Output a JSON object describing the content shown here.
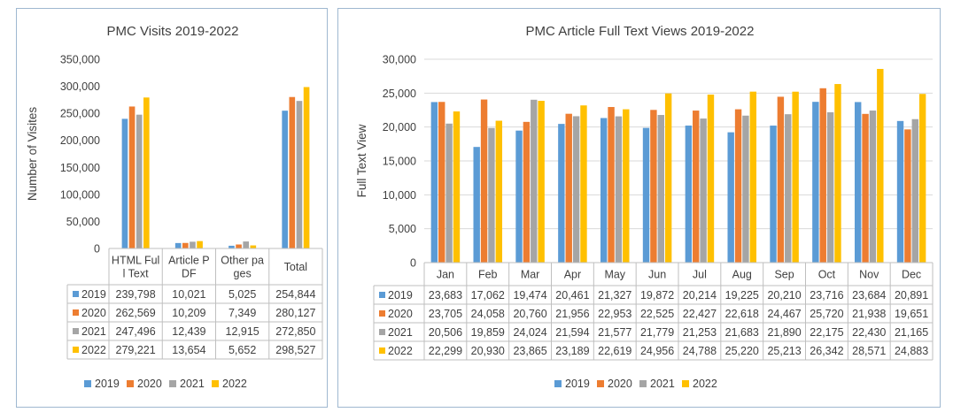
{
  "colors": {
    "2019": "#5b9bd5",
    "2020": "#ed7d31",
    "2021": "#a5a5a5",
    "2022": "#ffc000"
  },
  "chart_data": [
    {
      "type": "bar",
      "title": "PMC Visits 2019-2022",
      "ylabel": "Number of Visites",
      "xlabel": "",
      "ylim": [
        0,
        350000
      ],
      "yticks": [
        "0",
        "50,000",
        "100,000",
        "150,000",
        "200,000",
        "250,000",
        "300,000",
        "350,000"
      ],
      "categories": [
        [
          "HTML Ful",
          "l Text"
        ],
        [
          "Article P",
          "DF"
        ],
        [
          "Other pa",
          "ges"
        ],
        [
          "Total"
        ]
      ],
      "legend_position": "bottom",
      "grid": false,
      "series": [
        {
          "name": "2019",
          "values": [
            239798,
            10021,
            5025,
            254844
          ],
          "labels": [
            "239,798",
            "10,021",
            "5,025",
            "254,844"
          ]
        },
        {
          "name": "2020",
          "values": [
            262569,
            10209,
            7349,
            280127
          ],
          "labels": [
            "262,569",
            "10,209",
            "7,349",
            "280,127"
          ]
        },
        {
          "name": "2021",
          "values": [
            247496,
            12439,
            12915,
            272850
          ],
          "labels": [
            "247,496",
            "12,439",
            "12,915",
            "272,850"
          ]
        },
        {
          "name": "2022",
          "values": [
            279221,
            13654,
            5652,
            298527
          ],
          "labels": [
            "279,221",
            "13,654",
            "5,652",
            "298,527"
          ]
        }
      ]
    },
    {
      "type": "bar",
      "title": "PMC Article Full Text Views 2019-2022",
      "ylabel": "Full Text View",
      "xlabel": "",
      "ylim": [
        0,
        30000
      ],
      "yticks": [
        "0",
        "5,000",
        "10,000",
        "15,000",
        "20,000",
        "25,000",
        "30,000"
      ],
      "categories": [
        [
          "Jan"
        ],
        [
          "Feb"
        ],
        [
          "Mar"
        ],
        [
          "Apr"
        ],
        [
          "May"
        ],
        [
          "Jun"
        ],
        [
          "Jul"
        ],
        [
          "Aug"
        ],
        [
          "Sep"
        ],
        [
          "Oct"
        ],
        [
          "Nov"
        ],
        [
          "Dec"
        ]
      ],
      "legend_position": "bottom",
      "grid": true,
      "series": [
        {
          "name": "2019",
          "values": [
            23683,
            17062,
            19474,
            20461,
            21327,
            19872,
            20214,
            19225,
            20210,
            23716,
            23684,
            20891
          ],
          "labels": [
            "23,683",
            "17,062",
            "19,474",
            "20,461",
            "21,327",
            "19,872",
            "20,214",
            "19,225",
            "20,210",
            "23,716",
            "23,684",
            "20,891"
          ]
        },
        {
          "name": "2020",
          "values": [
            23705,
            24058,
            20760,
            21956,
            22953,
            22525,
            22427,
            22618,
            24467,
            25720,
            21938,
            19651
          ],
          "labels": [
            "23,705",
            "24,058",
            "20,760",
            "21,956",
            "22,953",
            "22,525",
            "22,427",
            "22,618",
            "24,467",
            "25,720",
            "21,938",
            "19,651"
          ]
        },
        {
          "name": "2021",
          "values": [
            20506,
            19859,
            24024,
            21594,
            21577,
            21779,
            21253,
            21683,
            21890,
            22175,
            22430,
            21165
          ],
          "labels": [
            "20,506",
            "19,859",
            "24,024",
            "21,594",
            "21,577",
            "21,779",
            "21,253",
            "21,683",
            "21,890",
            "22,175",
            "22,430",
            "21,165"
          ]
        },
        {
          "name": "2022",
          "values": [
            22299,
            20930,
            23865,
            23189,
            22619,
            24956,
            24788,
            25220,
            25213,
            26342,
            28571,
            24883
          ],
          "labels": [
            "22,299",
            "20,930",
            "23,865",
            "23,189",
            "22,619",
            "24,956",
            "24,788",
            "25,220",
            "25,213",
            "26,342",
            "28,571",
            "24,883"
          ]
        }
      ]
    }
  ]
}
